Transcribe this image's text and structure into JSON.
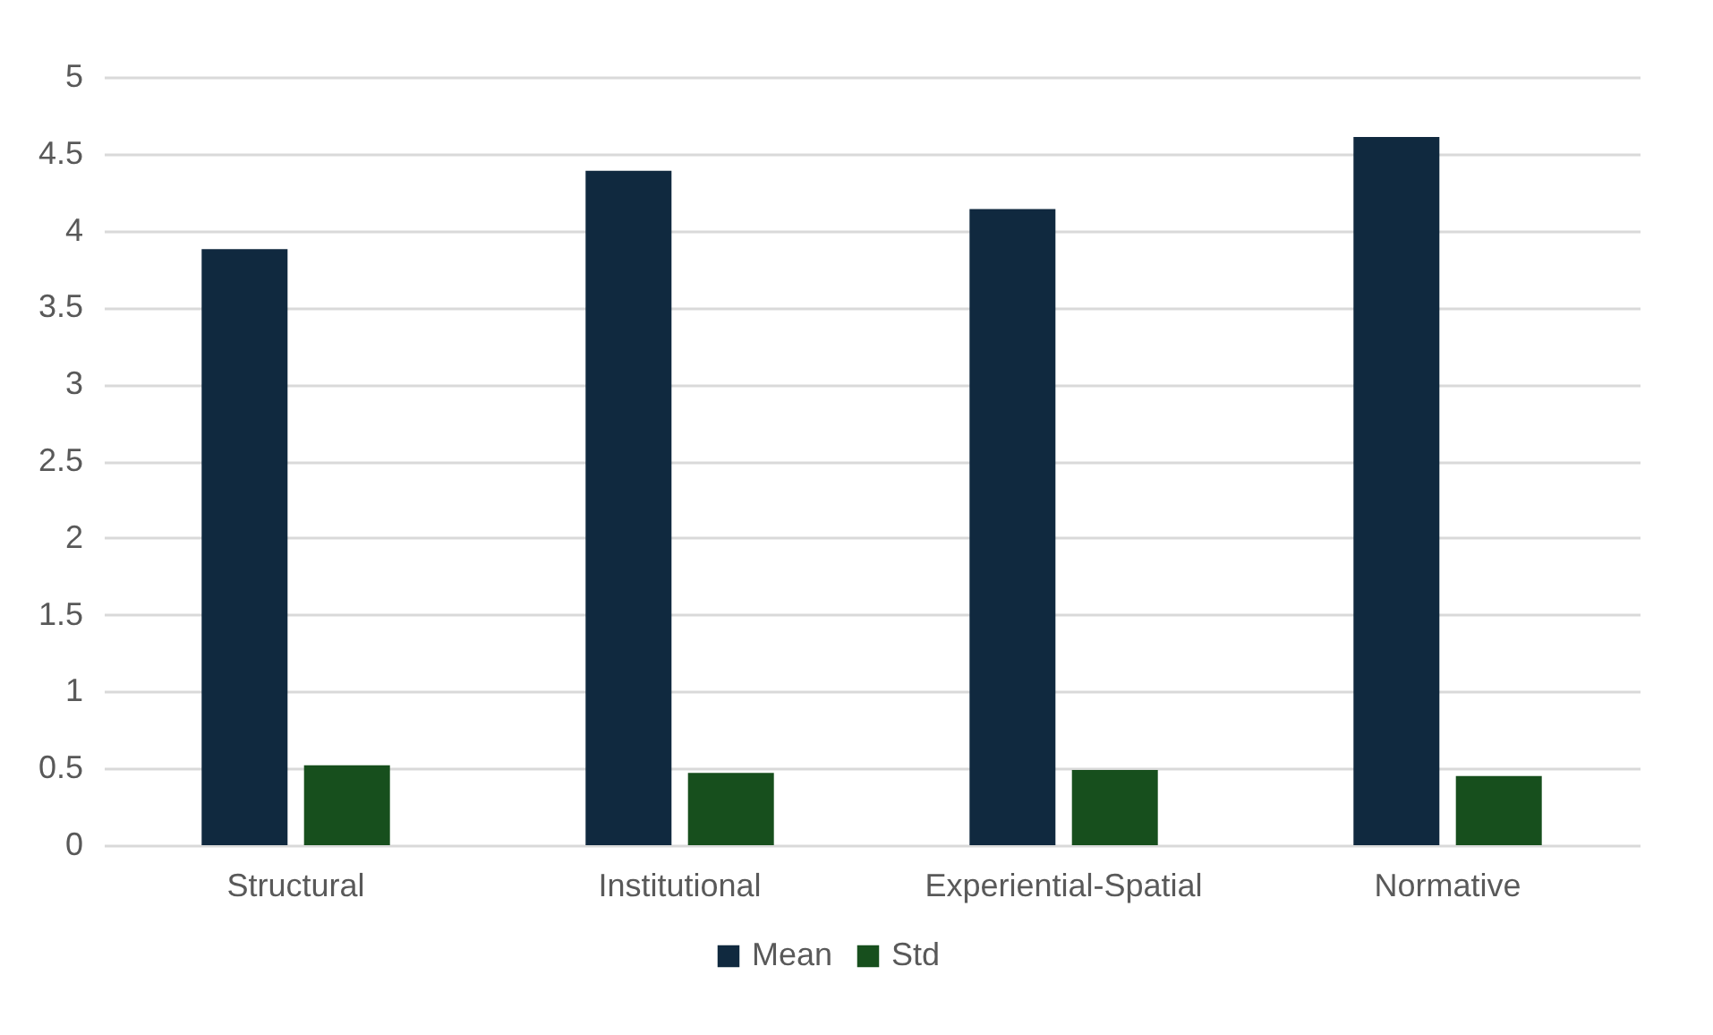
{
  "chart_data": {
    "type": "bar",
    "categories": [
      "Structural",
      "Institutional",
      "Experiential-Spatial",
      "Normative"
    ],
    "series": [
      {
        "name": "Mean",
        "color": "#10293f",
        "values": [
          3.88,
          4.39,
          4.14,
          4.61
        ]
      },
      {
        "name": "Std",
        "color": "#174f1d",
        "values": [
          0.52,
          0.47,
          0.49,
          0.45
        ]
      }
    ],
    "ylim": [
      0,
      5
    ],
    "yticks": [
      0,
      0.5,
      1,
      1.5,
      2,
      2.5,
      3,
      3.5,
      4,
      4.5,
      5
    ],
    "grid": "y",
    "legend": "bottom"
  }
}
